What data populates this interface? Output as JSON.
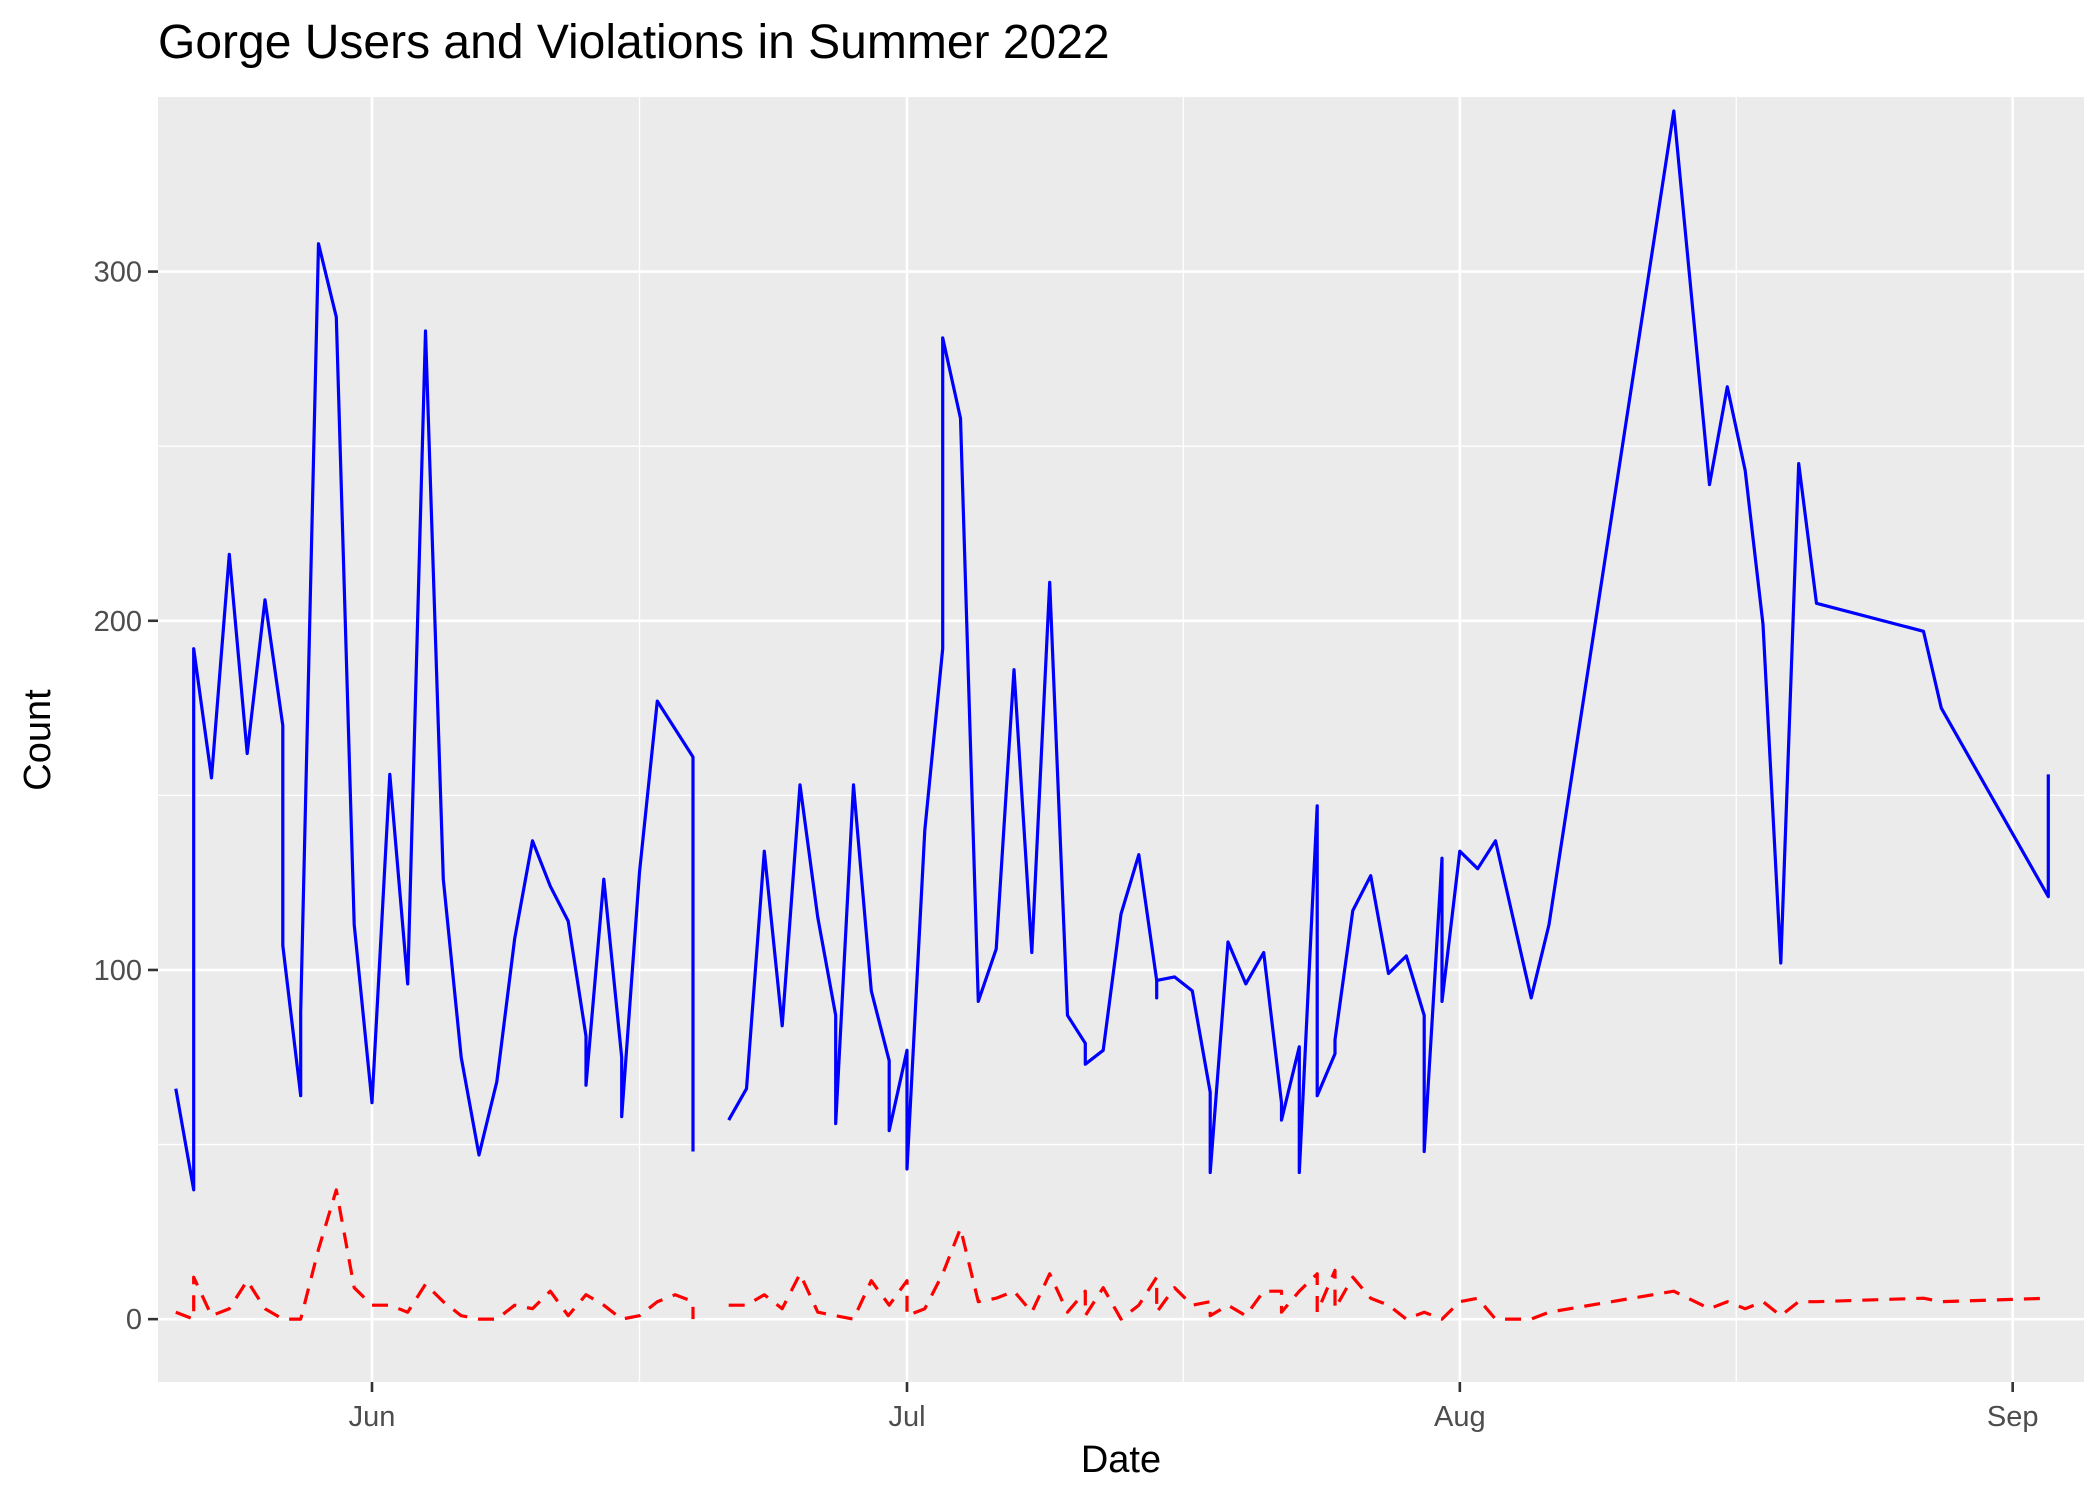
{
  "chart_data": {
    "type": "line",
    "title": "Gorge Users and Violations in Summer 2022",
    "xlabel": "Date",
    "ylabel": "Count",
    "x_axis": {
      "type": "date",
      "range": [
        "2022-05-20",
        "2022-09-05"
      ],
      "ticks": [
        {
          "date": "2022-06-01",
          "label": "Jun"
        },
        {
          "date": "2022-07-01",
          "label": "Jul"
        },
        {
          "date": "2022-08-01",
          "label": "Aug"
        },
        {
          "date": "2022-09-01",
          "label": "Sep"
        }
      ]
    },
    "y_axis": {
      "range": [
        -18,
        350
      ],
      "ticks": [
        0,
        100,
        200,
        300
      ],
      "minor_ticks": [
        50,
        150,
        250
      ]
    },
    "grid": true,
    "legend": "none",
    "background": "#ebebeb",
    "series": [
      {
        "color": "#0000ff",
        "style": "solid",
        "segments": [
          [
            {
              "x": "2022-05-21",
              "y": 66
            },
            {
              "x": "2022-05-22",
              "y": 37
            },
            {
              "x": "2022-05-22",
              "y": 192
            },
            {
              "x": "2022-05-23",
              "y": 155
            },
            {
              "x": "2022-05-24",
              "y": 219
            },
            {
              "x": "2022-05-25",
              "y": 162
            },
            {
              "x": "2022-05-26",
              "y": 206
            },
            {
              "x": "2022-05-27",
              "y": 170
            },
            {
              "x": "2022-05-27",
              "y": 107
            },
            {
              "x": "2022-05-28",
              "y": 64
            },
            {
              "x": "2022-05-28",
              "y": 88
            },
            {
              "x": "2022-05-29",
              "y": 308
            },
            {
              "x": "2022-05-30",
              "y": 287
            },
            {
              "x": "2022-05-31",
              "y": 113
            },
            {
              "x": "2022-06-01",
              "y": 62
            },
            {
              "x": "2022-06-02",
              "y": 156
            },
            {
              "x": "2022-06-03",
              "y": 96
            },
            {
              "x": "2022-06-04",
              "y": 283
            },
            {
              "x": "2022-06-05",
              "y": 126
            },
            {
              "x": "2022-06-06",
              "y": 75
            },
            {
              "x": "2022-06-07",
              "y": 47
            },
            {
              "x": "2022-06-08",
              "y": 68
            },
            {
              "x": "2022-06-09",
              "y": 109
            },
            {
              "x": "2022-06-10",
              "y": 137
            },
            {
              "x": "2022-06-11",
              "y": 124
            },
            {
              "x": "2022-06-12",
              "y": 114
            },
            {
              "x": "2022-06-13",
              "y": 81
            },
            {
              "x": "2022-06-13",
              "y": 67
            },
            {
              "x": "2022-06-14",
              "y": 126
            },
            {
              "x": "2022-06-15",
              "y": 75
            },
            {
              "x": "2022-06-15",
              "y": 58
            },
            {
              "x": "2022-06-16",
              "y": 128
            },
            {
              "x": "2022-06-17",
              "y": 177
            },
            {
              "x": "2022-06-19",
              "y": 161
            },
            {
              "x": "2022-06-19",
              "y": 48
            }
          ],
          [
            {
              "x": "2022-06-21",
              "y": 57
            },
            {
              "x": "2022-06-22",
              "y": 66
            },
            {
              "x": "2022-06-23",
              "y": 134
            },
            {
              "x": "2022-06-24",
              "y": 84
            },
            {
              "x": "2022-06-25",
              "y": 153
            },
            {
              "x": "2022-06-26",
              "y": 115
            },
            {
              "x": "2022-06-27",
              "y": 87
            },
            {
              "x": "2022-06-27",
              "y": 56
            },
            {
              "x": "2022-06-28",
              "y": 153
            },
            {
              "x": "2022-06-29",
              "y": 94
            },
            {
              "x": "2022-06-30",
              "y": 74
            },
            {
              "x": "2022-06-30",
              "y": 54
            },
            {
              "x": "2022-07-01",
              "y": 77
            },
            {
              "x": "2022-07-01",
              "y": 43
            },
            {
              "x": "2022-07-02",
              "y": 140
            },
            {
              "x": "2022-07-03",
              "y": 192
            },
            {
              "x": "2022-07-03",
              "y": 281
            },
            {
              "x": "2022-07-04",
              "y": 258
            },
            {
              "x": "2022-07-05",
              "y": 91
            },
            {
              "x": "2022-07-06",
              "y": 106
            },
            {
              "x": "2022-07-07",
              "y": 186
            },
            {
              "x": "2022-07-08",
              "y": 105
            },
            {
              "x": "2022-07-09",
              "y": 211
            },
            {
              "x": "2022-07-10",
              "y": 87
            },
            {
              "x": "2022-07-11",
              "y": 79
            },
            {
              "x": "2022-07-11",
              "y": 73
            },
            {
              "x": "2022-07-12",
              "y": 77
            },
            {
              "x": "2022-07-13",
              "y": 116
            },
            {
              "x": "2022-07-14",
              "y": 133
            },
            {
              "x": "2022-07-15",
              "y": 97
            },
            {
              "x": "2022-07-15",
              "y": 92
            },
            {
              "x": "2022-07-15",
              "y": 97
            },
            {
              "x": "2022-07-16",
              "y": 98
            },
            {
              "x": "2022-07-17",
              "y": 94
            },
            {
              "x": "2022-07-18",
              "y": 65
            },
            {
              "x": "2022-07-18",
              "y": 42
            },
            {
              "x": "2022-07-19",
              "y": 108
            },
            {
              "x": "2022-07-20",
              "y": 96
            },
            {
              "x": "2022-07-21",
              "y": 105
            },
            {
              "x": "2022-07-22",
              "y": 62
            },
            {
              "x": "2022-07-22",
              "y": 57
            },
            {
              "x": "2022-07-23",
              "y": 78
            },
            {
              "x": "2022-07-23",
              "y": 42
            },
            {
              "x": "2022-07-24",
              "y": 147
            },
            {
              "x": "2022-07-24",
              "y": 64
            },
            {
              "x": "2022-07-25",
              "y": 76
            },
            {
              "x": "2022-07-25",
              "y": 80
            },
            {
              "x": "2022-07-26",
              "y": 117
            },
            {
              "x": "2022-07-27",
              "y": 127
            },
            {
              "x": "2022-07-28",
              "y": 99
            },
            {
              "x": "2022-07-29",
              "y": 104
            },
            {
              "x": "2022-07-30",
              "y": 87
            },
            {
              "x": "2022-07-30",
              "y": 48
            },
            {
              "x": "2022-07-31",
              "y": 132
            },
            {
              "x": "2022-07-31",
              "y": 91
            },
            {
              "x": "2022-08-01",
              "y": 134
            },
            {
              "x": "2022-08-02",
              "y": 129
            },
            {
              "x": "2022-08-03",
              "y": 137
            },
            {
              "x": "2022-08-05",
              "y": 92
            },
            {
              "x": "2022-08-06",
              "y": 113
            },
            {
              "x": "2022-08-13",
              "y": 346
            },
            {
              "x": "2022-08-15",
              "y": 239
            },
            {
              "x": "2022-08-16",
              "y": 267
            },
            {
              "x": "2022-08-17",
              "y": 243
            },
            {
              "x": "2022-08-18",
              "y": 199
            },
            {
              "x": "2022-08-19",
              "y": 102
            },
            {
              "x": "2022-08-20",
              "y": 245
            },
            {
              "x": "2022-08-21",
              "y": 205
            },
            {
              "x": "2022-08-27",
              "y": 197
            },
            {
              "x": "2022-08-28",
              "y": 175
            },
            {
              "x": "2022-09-03",
              "y": 121
            },
            {
              "x": "2022-09-03",
              "y": 156
            }
          ]
        ]
      },
      {
        "color": "#ff0000",
        "style": "dashed",
        "segments": [
          [
            {
              "x": "2022-05-21",
              "y": 2
            },
            {
              "x": "2022-05-22",
              "y": 0
            },
            {
              "x": "2022-05-22",
              "y": 12
            },
            {
              "x": "2022-05-23",
              "y": 1
            },
            {
              "x": "2022-05-24",
              "y": 3
            },
            {
              "x": "2022-05-25",
              "y": 11
            },
            {
              "x": "2022-05-26",
              "y": 3
            },
            {
              "x": "2022-05-27",
              "y": 0
            },
            {
              "x": "2022-05-28",
              "y": 0
            },
            {
              "x": "2022-05-29",
              "y": 20
            },
            {
              "x": "2022-05-30",
              "y": 37
            },
            {
              "x": "2022-05-31",
              "y": 9
            },
            {
              "x": "2022-06-01",
              "y": 4
            },
            {
              "x": "2022-06-02",
              "y": 4
            },
            {
              "x": "2022-06-03",
              "y": 2
            },
            {
              "x": "2022-06-04",
              "y": 10
            },
            {
              "x": "2022-06-05",
              "y": 5
            },
            {
              "x": "2022-06-06",
              "y": 1
            },
            {
              "x": "2022-06-07",
              "y": 0
            },
            {
              "x": "2022-06-08",
              "y": 0
            },
            {
              "x": "2022-06-09",
              "y": 4
            },
            {
              "x": "2022-06-10",
              "y": 3
            },
            {
              "x": "2022-06-11",
              "y": 8
            },
            {
              "x": "2022-06-12",
              "y": 1
            },
            {
              "x": "2022-06-13",
              "y": 7
            },
            {
              "x": "2022-06-14",
              "y": 4
            },
            {
              "x": "2022-06-15",
              "y": 0
            },
            {
              "x": "2022-06-16",
              "y": 1
            },
            {
              "x": "2022-06-17",
              "y": 5
            },
            {
              "x": "2022-06-18",
              "y": 7
            },
            {
              "x": "2022-06-19",
              "y": 5
            },
            {
              "x": "2022-06-19",
              "y": 0
            }
          ],
          [
            {
              "x": "2022-06-21",
              "y": 4
            },
            {
              "x": "2022-06-22",
              "y": 4
            },
            {
              "x": "2022-06-23",
              "y": 7
            },
            {
              "x": "2022-06-24",
              "y": 3
            },
            {
              "x": "2022-06-25",
              "y": 13
            },
            {
              "x": "2022-06-26",
              "y": 2
            },
            {
              "x": "2022-06-27",
              "y": 1
            },
            {
              "x": "2022-06-28",
              "y": 0
            },
            {
              "x": "2022-06-29",
              "y": 11
            },
            {
              "x": "2022-06-30",
              "y": 4
            },
            {
              "x": "2022-07-01",
              "y": 11
            },
            {
              "x": "2022-07-01",
              "y": 1
            },
            {
              "x": "2022-07-02",
              "y": 3
            },
            {
              "x": "2022-07-03",
              "y": 13
            },
            {
              "x": "2022-07-04",
              "y": 26
            },
            {
              "x": "2022-07-05",
              "y": 5
            },
            {
              "x": "2022-07-06",
              "y": 6
            },
            {
              "x": "2022-07-07",
              "y": 8
            },
            {
              "x": "2022-07-08",
              "y": 2
            },
            {
              "x": "2022-07-09",
              "y": 13
            },
            {
              "x": "2022-07-10",
              "y": 2
            },
            {
              "x": "2022-07-11",
              "y": 8
            },
            {
              "x": "2022-07-11",
              "y": 1
            },
            {
              "x": "2022-07-12",
              "y": 9
            },
            {
              "x": "2022-07-13",
              "y": 0
            },
            {
              "x": "2022-07-14",
              "y": 4
            },
            {
              "x": "2022-07-15",
              "y": 12
            },
            {
              "x": "2022-07-15",
              "y": 2
            },
            {
              "x": "2022-07-16",
              "y": 9
            },
            {
              "x": "2022-07-17",
              "y": 4
            },
            {
              "x": "2022-07-18",
              "y": 5
            },
            {
              "x": "2022-07-18",
              "y": 1
            },
            {
              "x": "2022-07-19",
              "y": 4
            },
            {
              "x": "2022-07-20",
              "y": 1
            },
            {
              "x": "2022-07-21",
              "y": 8
            },
            {
              "x": "2022-07-22",
              "y": 8
            },
            {
              "x": "2022-07-22",
              "y": 2
            },
            {
              "x": "2022-07-23",
              "y": 8
            },
            {
              "x": "2022-07-24",
              "y": 13
            },
            {
              "x": "2022-07-24",
              "y": 2
            },
            {
              "x": "2022-07-25",
              "y": 14
            },
            {
              "x": "2022-07-25",
              "y": 3
            },
            {
              "x": "2022-07-26",
              "y": 12
            },
            {
              "x": "2022-07-27",
              "y": 6
            },
            {
              "x": "2022-07-28",
              "y": 4
            },
            {
              "x": "2022-07-29",
              "y": 0
            },
            {
              "x": "2022-07-30",
              "y": 2
            },
            {
              "x": "2022-07-31",
              "y": 0
            },
            {
              "x": "2022-08-01",
              "y": 5
            },
            {
              "x": "2022-08-02",
              "y": 6
            },
            {
              "x": "2022-08-03",
              "y": 0
            },
            {
              "x": "2022-08-05",
              "y": 0
            },
            {
              "x": "2022-08-06",
              "y": 2
            },
            {
              "x": "2022-08-13",
              "y": 8
            },
            {
              "x": "2022-08-15",
              "y": 3
            },
            {
              "x": "2022-08-16",
              "y": 5
            },
            {
              "x": "2022-08-17",
              "y": 3
            },
            {
              "x": "2022-08-18",
              "y": 5
            },
            {
              "x": "2022-08-19",
              "y": 1
            },
            {
              "x": "2022-08-20",
              "y": 5
            },
            {
              "x": "2022-08-21",
              "y": 5
            },
            {
              "x": "2022-08-27",
              "y": 6
            },
            {
              "x": "2022-08-28",
              "y": 5
            },
            {
              "x": "2022-09-03",
              "y": 6
            }
          ]
        ]
      }
    ]
  }
}
